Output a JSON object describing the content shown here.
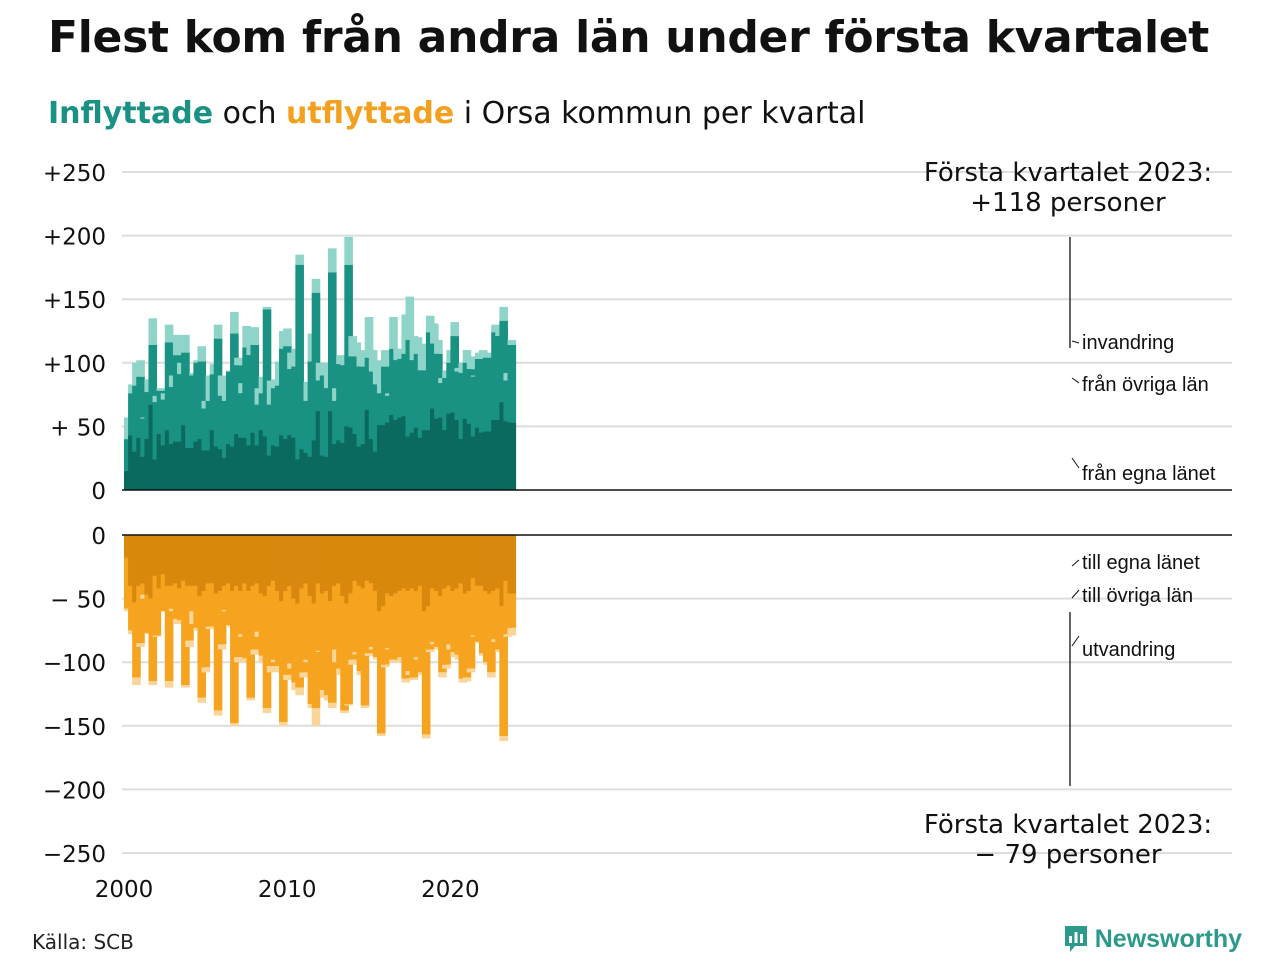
{
  "title": "Flest kom från andra län under första kvartalet",
  "subtitle": {
    "in": "Inflyttade",
    "and": " och ",
    "out": "utflyttade",
    "rest": " i Orsa kommun per kvartal"
  },
  "source": "Källa: SCB",
  "brand": "Newsworthy",
  "colors": {
    "in_own": "#0b6a5f",
    "in_other": "#1a9283",
    "in_intl": "#8fd4c8",
    "out_own": "#d9880e",
    "out_other": "#f6a41f",
    "out_intl": "#fad59a",
    "grid": "#dddddd"
  },
  "chart_data": {
    "type": "bar",
    "stacked": true,
    "x_ticks": [
      "2000",
      "2010",
      "2020"
    ],
    "y_ticks_in": [
      "+250",
      "+200",
      "+150",
      "+100",
      "+ 50",
      "0"
    ],
    "y_ticks_out": [
      "0",
      "− 50",
      "−100",
      "−150",
      "−200",
      "−250"
    ],
    "yrange_in": [
      0,
      250
    ],
    "yrange_out": [
      -250,
      0
    ],
    "start_year": 2000,
    "series_in_labels": [
      "från egna länet",
      "från övriga län",
      "invandring"
    ],
    "series_out_labels": [
      "till egna länet",
      "till övriga län",
      "utvandring"
    ],
    "annotation_in": [
      "Första kvartalet 2023:",
      "+118 personer"
    ],
    "annotation_out": [
      "Första kvartalet 2023:",
      "− 79 personer"
    ],
    "in_total": [
      57,
      83,
      100,
      102,
      57,
      87,
      135,
      74,
      80,
      76,
      130,
      90,
      122,
      100,
      122,
      92,
      92,
      102,
      113,
      70,
      90,
      99,
      130,
      90,
      86,
      94,
      140,
      104,
      84,
      129,
      124,
      128,
      80,
      89,
      144,
      86,
      87,
      101,
      125,
      127,
      108,
      111,
      185,
      71,
      85,
      123,
      166,
      100,
      100,
      100,
      190,
      80,
      106,
      104,
      199,
      121,
      116,
      110,
      72,
      136,
      110,
      102,
      87,
      110,
      76,
      136,
      111,
      111,
      138,
      152,
      121,
      120,
      115,
      113,
      137,
      131,
      118,
      88,
      94,
      110,
      132,
      96,
      100,
      110,
      105,
      90,
      108,
      110,
      108,
      88,
      130,
      125,
      144,
      92,
      118
    ],
    "in_own": [
      15,
      43,
      30,
      41,
      26,
      40,
      67,
      24,
      44,
      35,
      47,
      36,
      38,
      38,
      51,
      33,
      33,
      38,
      40,
      31,
      31,
      47,
      34,
      32,
      25,
      36,
      34,
      44,
      41,
      41,
      35,
      45,
      35,
      47,
      42,
      27,
      35,
      34,
      43,
      40,
      43,
      41,
      24,
      32,
      29,
      26,
      39,
      62,
      27,
      26,
      62,
      36,
      39,
      37,
      50,
      49,
      44,
      34,
      36,
      63,
      40,
      30,
      51,
      51,
      53,
      59,
      55,
      57,
      58,
      42,
      45,
      49,
      41,
      47,
      47,
      64,
      56,
      57,
      47,
      60,
      61,
      55,
      40,
      56,
      52,
      42,
      49,
      45,
      46,
      46,
      55,
      55,
      69,
      54,
      53
    ],
    "in_other": [
      40,
      76,
      82,
      89,
      56,
      77,
      114,
      69,
      78,
      71,
      116,
      81,
      106,
      91,
      108,
      92,
      90,
      100,
      101,
      64,
      70,
      91,
      119,
      74,
      70,
      93,
      123,
      98,
      76,
      112,
      106,
      114,
      67,
      76,
      142,
      67,
      80,
      82,
      111,
      113,
      95,
      97,
      177,
      71,
      70,
      101,
      155,
      86,
      90,
      80,
      171,
      70,
      99,
      98,
      177,
      105,
      105,
      97,
      72,
      104,
      93,
      83,
      76,
      97,
      74,
      111,
      102,
      103,
      107,
      118,
      102,
      107,
      94,
      94,
      124,
      115,
      107,
      84,
      88,
      100,
      121,
      93,
      92,
      100,
      95,
      89,
      103,
      103,
      104,
      88,
      124,
      121,
      133,
      86,
      114
    ],
    "out_total": [
      60,
      78,
      118,
      88,
      50,
      78,
      118,
      80,
      55,
      60,
      120,
      60,
      70,
      70,
      120,
      88,
      70,
      75,
      132,
      108,
      74,
      74,
      142,
      90,
      60,
      72,
      150,
      100,
      80,
      100,
      130,
      94,
      80,
      100,
      140,
      108,
      100,
      108,
      150,
      114,
      105,
      122,
      126,
      112,
      100,
      136,
      150,
      92,
      128,
      130,
      136,
      100,
      110,
      140,
      134,
      102,
      94,
      110,
      136,
      95,
      90,
      98,
      158,
      104,
      90,
      100,
      100,
      100,
      116,
      110,
      114,
      98,
      110,
      160,
      92,
      86,
      90,
      112,
      105,
      90,
      96,
      98,
      116,
      115,
      108,
      80,
      85,
      95,
      102,
      112,
      84,
      92,
      162,
      80,
      79
    ],
    "out_own": [
      18,
      40,
      53,
      40,
      38,
      47,
      50,
      32,
      42,
      31,
      40,
      40,
      38,
      42,
      36,
      40,
      40,
      40,
      48,
      44,
      38,
      38,
      46,
      44,
      40,
      38,
      44,
      40,
      44,
      38,
      44,
      40,
      38,
      46,
      48,
      40,
      36,
      44,
      52,
      44,
      40,
      50,
      54,
      42,
      38,
      48,
      54,
      38,
      46,
      44,
      52,
      40,
      38,
      48,
      54,
      46,
      36,
      40,
      42,
      36,
      38,
      44,
      60,
      56,
      46,
      48,
      46,
      44,
      42,
      44,
      42,
      44,
      40,
      60,
      56,
      42,
      44,
      48,
      42,
      40,
      44,
      42,
      38,
      46,
      44,
      34,
      40,
      40,
      44,
      46,
      44,
      42,
      56,
      36,
      46
    ],
    "out_other": [
      58,
      75,
      112,
      85,
      47,
      77,
      115,
      79,
      55,
      60,
      115,
      58,
      66,
      67,
      118,
      83,
      60,
      73,
      128,
      104,
      72,
      72,
      138,
      86,
      59,
      71,
      148,
      96,
      78,
      97,
      128,
      90,
      76,
      95,
      136,
      103,
      98,
      103,
      147,
      110,
      101,
      116,
      120,
      108,
      98,
      133,
      136,
      91,
      122,
      126,
      132,
      90,
      105,
      138,
      133,
      98,
      92,
      107,
      134,
      93,
      88,
      96,
      156,
      102,
      89,
      98,
      98,
      96,
      113,
      107,
      112,
      96,
      108,
      157,
      90,
      84,
      88,
      108,
      102,
      86,
      92,
      94,
      113,
      112,
      105,
      79,
      84,
      93,
      100,
      108,
      82,
      90,
      158,
      78,
      73
    ]
  }
}
